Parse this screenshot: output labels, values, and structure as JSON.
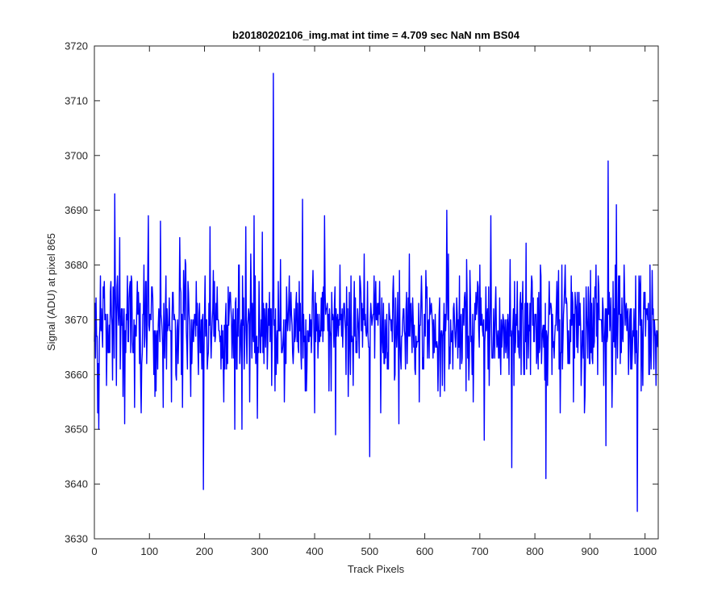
{
  "chart_data": {
    "type": "line",
    "title": "b20180202106_img.mat int time = 4.709 sec  NaN nm BS04",
    "xlabel": "Track Pixels",
    "ylabel": "Signal (ADU) at pixel 865",
    "xlim": [
      0,
      1024
    ],
    "ylim": [
      3630,
      3720
    ],
    "x_ticks": [
      0,
      100,
      200,
      300,
      400,
      500,
      600,
      700,
      800,
      900,
      1000
    ],
    "y_ticks": [
      3630,
      3640,
      3650,
      3660,
      3670,
      3680,
      3690,
      3700,
      3710,
      3720
    ],
    "grid": false,
    "legend": "none",
    "series": [
      {
        "color": "#0000ff",
        "noise": {
          "count": 1024,
          "mean": 3669,
          "amplitude": 7,
          "seed": 865
        },
        "points": [
          [
            0,
            3666
          ],
          [
            3,
            3674
          ],
          [
            6,
            3653
          ],
          [
            8,
            3650
          ],
          [
            12,
            3668
          ],
          [
            18,
            3677
          ],
          [
            22,
            3658
          ],
          [
            30,
            3677
          ],
          [
            37,
            3693
          ],
          [
            40,
            3658
          ],
          [
            46,
            3685
          ],
          [
            52,
            3656
          ],
          [
            55,
            3651
          ],
          [
            60,
            3678
          ],
          [
            68,
            3677
          ],
          [
            73,
            3654
          ],
          [
            80,
            3675
          ],
          [
            85,
            3653
          ],
          [
            90,
            3680
          ],
          [
            95,
            3662
          ],
          [
            98,
            3689
          ],
          [
            110,
            3656
          ],
          [
            120,
            3688
          ],
          [
            125,
            3654
          ],
          [
            130,
            3678
          ],
          [
            140,
            3655
          ],
          [
            148,
            3660
          ],
          [
            155,
            3685
          ],
          [
            160,
            3654
          ],
          [
            166,
            3680
          ],
          [
            175,
            3656
          ],
          [
            185,
            3677
          ],
          [
            193,
            3664
          ],
          [
            198,
            3639
          ],
          [
            202,
            3667
          ],
          [
            210,
            3687
          ],
          [
            222,
            3670
          ],
          [
            235,
            3655
          ],
          [
            246,
            3675
          ],
          [
            255,
            3650
          ],
          [
            262,
            3680
          ],
          [
            268,
            3650
          ],
          [
            275,
            3687
          ],
          [
            282,
            3655
          ],
          [
            290,
            3689
          ],
          [
            296,
            3652
          ],
          [
            305,
            3686
          ],
          [
            318,
            3675
          ],
          [
            322,
            3658
          ],
          [
            325,
            3715
          ],
          [
            328,
            3657
          ],
          [
            338,
            3681
          ],
          [
            345,
            3655
          ],
          [
            360,
            3664
          ],
          [
            372,
            3677
          ],
          [
            378,
            3692
          ],
          [
            385,
            3657
          ],
          [
            400,
            3653
          ],
          [
            412,
            3674
          ],
          [
            418,
            3689
          ],
          [
            426,
            3657
          ],
          [
            432,
            3670
          ],
          [
            438,
            3649
          ],
          [
            446,
            3680
          ],
          [
            460,
            3672
          ],
          [
            475,
            3664
          ],
          [
            486,
            3673
          ],
          [
            500,
            3645
          ],
          [
            506,
            3671
          ],
          [
            520,
            3653
          ],
          [
            530,
            3667
          ],
          [
            543,
            3678
          ],
          [
            553,
            3651
          ],
          [
            560,
            3670
          ],
          [
            575,
            3673
          ],
          [
            590,
            3655
          ],
          [
            602,
            3679
          ],
          [
            616,
            3670
          ],
          [
            628,
            3656
          ],
          [
            640,
            3690
          ],
          [
            652,
            3672
          ],
          [
            664,
            3661
          ],
          [
            676,
            3681
          ],
          [
            688,
            3655
          ],
          [
            700,
            3680
          ],
          [
            708,
            3648
          ],
          [
            712,
            3668
          ],
          [
            720,
            3689
          ],
          [
            735,
            3663
          ],
          [
            746,
            3670
          ],
          [
            758,
            3643
          ],
          [
            770,
            3668
          ],
          [
            784,
            3684
          ],
          [
            792,
            3660
          ],
          [
            805,
            3674
          ],
          [
            812,
            3662
          ],
          [
            820,
            3641
          ],
          [
            830,
            3672
          ],
          [
            838,
            3669
          ],
          [
            846,
            3653
          ],
          [
            855,
            3680
          ],
          [
            862,
            3662
          ],
          [
            870,
            3655
          ],
          [
            880,
            3675
          ],
          [
            890,
            3653
          ],
          [
            905,
            3662
          ],
          [
            915,
            3678
          ],
          [
            925,
            3658
          ],
          [
            929,
            3647
          ],
          [
            933,
            3699
          ],
          [
            940,
            3654
          ],
          [
            948,
            3691
          ],
          [
            955,
            3662
          ],
          [
            962,
            3680
          ],
          [
            970,
            3660
          ],
          [
            978,
            3668
          ],
          [
            982,
            3662
          ],
          [
            986,
            3635
          ],
          [
            990,
            3676
          ],
          [
            996,
            3658
          ],
          [
            1002,
            3672
          ],
          [
            1008,
            3660
          ],
          [
            1014,
            3671
          ],
          [
            1020,
            3658
          ],
          [
            1023,
            3665
          ]
        ]
      }
    ]
  }
}
